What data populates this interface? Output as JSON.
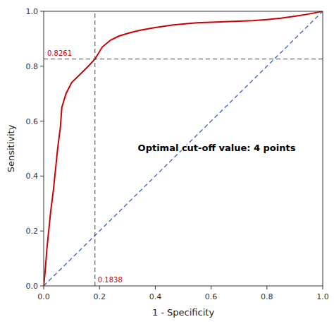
{
  "chart_data": {
    "type": "line",
    "title": "",
    "xlabel": "1 - Specificity",
    "ylabel": "Sensitivity",
    "xlim": [
      0.0,
      1.0
    ],
    "ylim": [
      0.0,
      1.0
    ],
    "xticks": [
      {
        "value": 0.0,
        "label": "0.0"
      },
      0.2,
      0.4,
      0.6,
      0.8,
      {
        "value": 1.0,
        "label": "1.0"
      }
    ],
    "yticks": [
      {
        "value": 0.0,
        "label": "0.0"
      },
      0.2,
      0.4,
      0.6,
      0.8,
      {
        "value": 1.0,
        "label": "1.0"
      }
    ],
    "grid": false,
    "series": [
      {
        "color": "#4466CC",
        "line_style": "dashed",
        "x": [
          0,
          1
        ],
        "values": [
          0,
          1
        ]
      },
      {
        "color": "#CC0000",
        "line_style": "solid",
        "x": [
          0.0,
          0.002,
          0.005,
          0.008,
          0.012,
          0.018,
          0.025,
          0.035,
          0.05,
          0.06,
          0.065,
          0.08,
          0.1,
          0.13,
          0.16,
          0.1838,
          0.21,
          0.24,
          0.27,
          0.31,
          0.35,
          0.4,
          0.46,
          0.5,
          0.55,
          0.6,
          0.65,
          0.7,
          0.75,
          0.8,
          0.85,
          0.9,
          0.95,
          1.0
        ],
        "values": [
          0.0,
          0.02,
          0.05,
          0.09,
          0.14,
          0.2,
          0.27,
          0.35,
          0.5,
          0.58,
          0.65,
          0.7,
          0.74,
          0.77,
          0.8,
          0.8261,
          0.87,
          0.895,
          0.91,
          0.922,
          0.932,
          0.941,
          0.95,
          0.954,
          0.958,
          0.96,
          0.962,
          0.964,
          0.966,
          0.97,
          0.975,
          0.982,
          0.99,
          1.0
        ]
      }
    ],
    "crosshair": {
      "x": 0.1838,
      "y": 0.8261,
      "color": "#444444",
      "line_style": "dashed",
      "label_color": "#CC0000"
    },
    "annotations": [
      {
        "text": "Optimal cut-off value: 4 points",
        "x": 0.62,
        "y": 0.5
      }
    ]
  }
}
